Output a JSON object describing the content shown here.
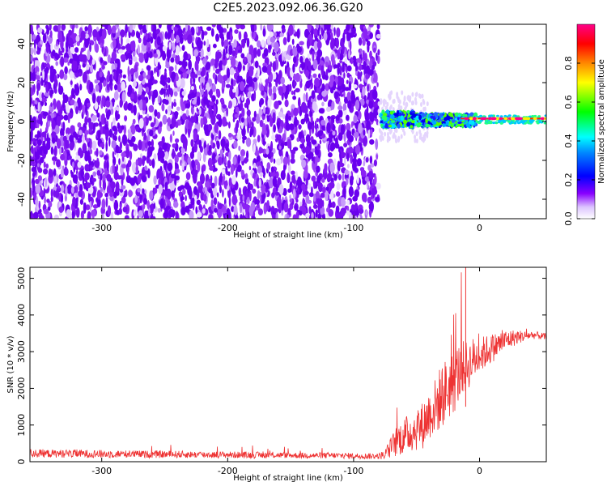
{
  "title": "C2E5.2023.092.06.36.G20",
  "chart_data": [
    {
      "type": "heatmap",
      "title": "C2E5.2023.092.06.36.G20",
      "xlabel": "Height of straight line (km)",
      "ylabel": "Frequency (Hz)",
      "xlim": [
        -357,
        53
      ],
      "ylim": [
        -50,
        50
      ],
      "xticks": [
        -300,
        -200,
        -100,
        0
      ],
      "yticks": [
        -40,
        -20,
        0,
        20,
        40
      ],
      "noise_region_x": [
        -357,
        -80
      ],
      "signal_band_hz": [
        -3,
        5
      ],
      "signal_trace_hz": 1.5,
      "colorbar": {
        "label": "Normalized spectral amplitude",
        "ticks": [
          0.0,
          0.2,
          0.4,
          0.6,
          0.8
        ],
        "range": [
          0,
          1
        ],
        "colors": [
          "#ffffff",
          "#8800ff",
          "#0000ff",
          "#00ffff",
          "#00ff00",
          "#ffff00",
          "#ff8800",
          "#ff0000",
          "#ff0088"
        ]
      }
    },
    {
      "type": "line",
      "xlabel": "Height of straight line (km)",
      "ylabel": "SNR (10 * v/v)",
      "xlim": [
        -357,
        53
      ],
      "ylim": [
        0,
        5300
      ],
      "xticks": [
        -300,
        -200,
        -100,
        0
      ],
      "yticks": [
        0,
        1000,
        2000,
        3000,
        4000,
        5000
      ],
      "color": "#ee3333",
      "series": [
        {
          "x": [
            -357,
            -340,
            -320,
            -300,
            -280,
            -260,
            -240,
            -220,
            -200,
            -180,
            -160,
            -140,
            -120,
            -100,
            -80,
            -75,
            -70,
            -65,
            -60,
            -55,
            -50,
            -45,
            -40,
            -35,
            -30,
            -25,
            -20,
            -15,
            -10,
            -5,
            0,
            5,
            10,
            15,
            20,
            25,
            30,
            35,
            40,
            45,
            53
          ],
          "y": [
            230,
            220,
            220,
            210,
            210,
            200,
            200,
            190,
            190,
            180,
            180,
            170,
            170,
            160,
            150,
            200,
            400,
            600,
            700,
            800,
            900,
            1000,
            1300,
            1500,
            1800,
            2000,
            2200,
            2500,
            2600,
            2800,
            2900,
            3000,
            3100,
            3200,
            3300,
            3350,
            3400,
            3420,
            3450,
            3450,
            3400
          ],
          "noise_amp": [
            120,
            110,
            110,
            110,
            100,
            100,
            100,
            90,
            90,
            90,
            80,
            80,
            80,
            80,
            80,
            150,
            300,
            450,
            500,
            550,
            600,
            650,
            700,
            800,
            900,
            900,
            900,
            800,
            700,
            600,
            500,
            450,
            400,
            350,
            300,
            250,
            200,
            150,
            120,
            100,
            100
          ],
          "peak": [
            -11,
            5300
          ]
        }
      ]
    }
  ]
}
